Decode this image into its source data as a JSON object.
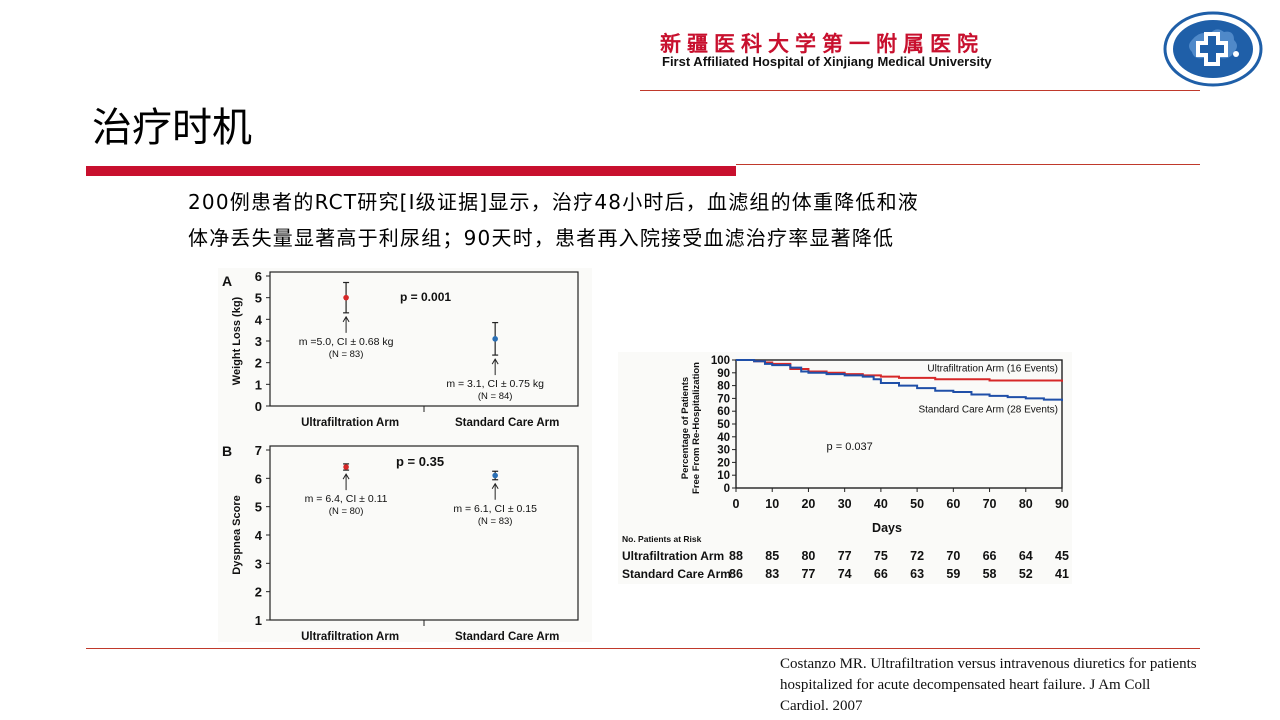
{
  "header": {
    "hospital_cn": "新疆医科大学第一附属医院",
    "hospital_en": "First Affiliated Hospital of Xinjiang Medical University",
    "accent_color": "#c8102e",
    "logo_color": "#1f5fa8"
  },
  "slide": {
    "title": "治疗时机",
    "text_line1": "200例患者的RCT研究[Ⅰ级证据]显示，治疗48小时后，血滤组的体重降低和液",
    "text_line2": "体净丢失量显著高于利尿组；90天时，患者再入院接受血滤治疗率显著降低",
    "citation": "Costanzo MR. Ultrafiltration versus intravenous diuretics for patients hospitalized for acute decompensated heart failure. J Am Coll Cardiol. 2007"
  },
  "chart_data": [
    {
      "type": "scatter",
      "panel": "A",
      "ylabel": "Weight Loss (kg)",
      "categories": [
        "Ultrafiltration Arm",
        "Standard Care Arm"
      ],
      "ylim": [
        0,
        6
      ],
      "yticks": [
        "0",
        "1",
        "2",
        "3",
        "4",
        "5",
        "6"
      ],
      "pvalue": "p = 0.001",
      "points": [
        {
          "category": "Ultrafiltration Arm",
          "y": 5.0,
          "err_low": 4.3,
          "err_high": 5.7,
          "color": "#d62828",
          "label1": "m =5.0, CI ± 0.68 kg",
          "label2": "(N = 83)"
        },
        {
          "category": "Standard Care Arm",
          "y": 3.1,
          "err_low": 2.35,
          "err_high": 3.85,
          "color": "#2a6fb5",
          "label1": "m = 3.1, CI ± 0.75 kg",
          "label2": "(N = 84)"
        }
      ]
    },
    {
      "type": "scatter",
      "panel": "B",
      "ylabel": "Dyspnea Score",
      "categories": [
        "Ultrafiltration Arm",
        "Standard Care Arm"
      ],
      "ylim": [
        1,
        7
      ],
      "yticks": [
        "1",
        "2",
        "3",
        "4",
        "5",
        "6",
        "7"
      ],
      "pvalue": "p = 0.35",
      "points": [
        {
          "category": "Ultrafiltration Arm",
          "y": 6.4,
          "err_low": 6.29,
          "err_high": 6.51,
          "color": "#d62828",
          "label1": "m = 6.4, CI ± 0.11",
          "label2": "(N = 80)"
        },
        {
          "category": "Standard Care Arm",
          "y": 6.1,
          "err_low": 5.95,
          "err_high": 6.25,
          "color": "#2a6fb5",
          "label1": "m = 6.1, CI ± 0.15",
          "label2": "(N = 83)"
        }
      ]
    },
    {
      "type": "line",
      "ylabel_line1": "Percentage of Patients",
      "ylabel_line2": "Free From Re-Hospitalization",
      "xlabel": "Days",
      "xlim": [
        0,
        90
      ],
      "ylim": [
        0,
        100
      ],
      "xticks": [
        "0",
        "10",
        "20",
        "30",
        "40",
        "50",
        "60",
        "70",
        "80",
        "90"
      ],
      "yticks": [
        "0",
        "10",
        "20",
        "30",
        "40",
        "50",
        "60",
        "70",
        "80",
        "90",
        "100"
      ],
      "pvalue": "p = 0.037",
      "series": [
        {
          "name": "Ultrafiltration Arm (16 Events)",
          "color": "#d62828",
          "x": [
            0,
            5,
            8,
            10,
            15,
            20,
            25,
            30,
            35,
            40,
            45,
            50,
            55,
            60,
            65,
            70,
            75,
            80,
            85,
            90
          ],
          "y": [
            100,
            99,
            98,
            97,
            93,
            91,
            90,
            89,
            88,
            87,
            86,
            86,
            85,
            85,
            85,
            84,
            84,
            84,
            84,
            83
          ]
        },
        {
          "name": "Standard Care Arm (28 Events)",
          "color": "#1f4fa8",
          "x": [
            0,
            5,
            8,
            10,
            15,
            18,
            20,
            25,
            30,
            35,
            38,
            40,
            45,
            50,
            55,
            60,
            65,
            70,
            75,
            80,
            85,
            90
          ],
          "y": [
            100,
            99,
            97,
            96,
            94,
            91,
            90,
            89,
            88,
            87,
            85,
            82,
            80,
            78,
            76,
            75,
            73,
            72,
            71,
            70,
            69,
            68
          ]
        }
      ],
      "risk_table": {
        "title": "No. Patients at Risk",
        "rows": [
          {
            "label": "Ultrafiltration Arm",
            "values": [
              "88",
              "85",
              "80",
              "77",
              "75",
              "72",
              "70",
              "66",
              "64",
              "45"
            ]
          },
          {
            "label": "Standard Care Arm",
            "values": [
              "86",
              "83",
              "77",
              "74",
              "66",
              "63",
              "59",
              "58",
              "52",
              "41"
            ]
          }
        ]
      }
    }
  ]
}
